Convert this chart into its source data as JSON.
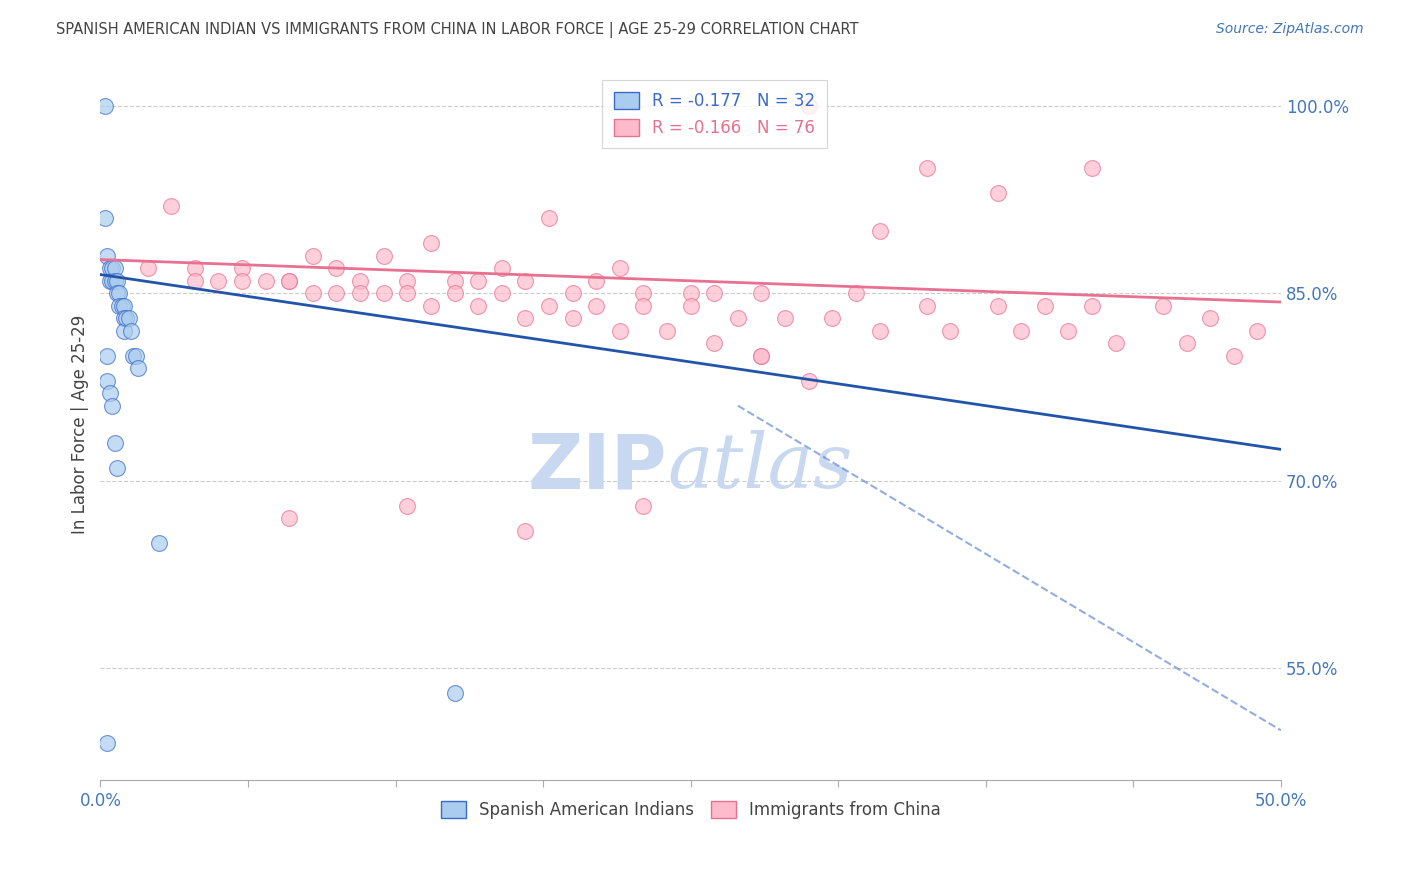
{
  "title": "SPANISH AMERICAN INDIAN VS IMMIGRANTS FROM CHINA IN LABOR FORCE | AGE 25-29 CORRELATION CHART",
  "source": "Source: ZipAtlas.com",
  "ylabel": "In Labor Force | Age 25-29",
  "xlim": [
    0.0,
    0.5
  ],
  "ylim": [
    0.46,
    1.03
  ],
  "xtick_positions": [
    0.0,
    0.0625,
    0.125,
    0.1875,
    0.25,
    0.3125,
    0.375,
    0.4375,
    0.5
  ],
  "xtick_labels_show": {
    "0.0": "0.0%",
    "0.5": "50.0%"
  },
  "ytick_positions_right": [
    1.0,
    0.85,
    0.7,
    0.55
  ],
  "ytick_labels_right": [
    "100.0%",
    "85.0%",
    "70.0%",
    "55.0%"
  ],
  "legend_r_entries": [
    {
      "r_text": "R = -0.177",
      "n_text": "N = 32",
      "r_color": "#3a6bc9",
      "n_color": "#3a6bc9"
    },
    {
      "r_text": "R = -0.166",
      "n_text": "N = 76",
      "r_color": "#e87090",
      "n_color": "#e87090"
    }
  ],
  "legend2_entries": [
    {
      "label": "Spanish American Indians",
      "face_color": "#aaccee",
      "edge_color": "#3a6bc9"
    },
    {
      "label": "Immigrants from China",
      "face_color": "#ffbbcc",
      "edge_color": "#e87090"
    }
  ],
  "blue_scatter_x": [
    0.002,
    0.002,
    0.003,
    0.004,
    0.004,
    0.005,
    0.005,
    0.006,
    0.006,
    0.007,
    0.007,
    0.008,
    0.008,
    0.009,
    0.01,
    0.01,
    0.01,
    0.011,
    0.012,
    0.013,
    0.014,
    0.015,
    0.016,
    0.003,
    0.003,
    0.004,
    0.005,
    0.006,
    0.007,
    0.025,
    0.15,
    0.003
  ],
  "blue_scatter_y": [
    1.0,
    0.91,
    0.88,
    0.87,
    0.86,
    0.87,
    0.86,
    0.87,
    0.86,
    0.86,
    0.85,
    0.85,
    0.84,
    0.84,
    0.84,
    0.83,
    0.82,
    0.83,
    0.83,
    0.82,
    0.8,
    0.8,
    0.79,
    0.8,
    0.78,
    0.77,
    0.76,
    0.73,
    0.71,
    0.65,
    0.53,
    0.49
  ],
  "pink_scatter_x": [
    0.3,
    0.03,
    0.09,
    0.14,
    0.19,
    0.12,
    0.17,
    0.22,
    0.04,
    0.06,
    0.08,
    0.1,
    0.11,
    0.13,
    0.15,
    0.16,
    0.18,
    0.2,
    0.21,
    0.23,
    0.25,
    0.26,
    0.28,
    0.32,
    0.35,
    0.38,
    0.4,
    0.42,
    0.45,
    0.47,
    0.49,
    0.05,
    0.07,
    0.09,
    0.11,
    0.13,
    0.15,
    0.17,
    0.19,
    0.21,
    0.23,
    0.25,
    0.27,
    0.29,
    0.31,
    0.33,
    0.36,
    0.39,
    0.41,
    0.43,
    0.46,
    0.48,
    0.02,
    0.04,
    0.06,
    0.08,
    0.1,
    0.12,
    0.14,
    0.16,
    0.18,
    0.2,
    0.22,
    0.24,
    0.26,
    0.28,
    0.3,
    0.35,
    0.42,
    0.38,
    0.33,
    0.28,
    0.23,
    0.18,
    0.13,
    0.08
  ],
  "pink_scatter_y": [
    1.0,
    0.92,
    0.88,
    0.89,
    0.91,
    0.88,
    0.87,
    0.87,
    0.87,
    0.87,
    0.86,
    0.87,
    0.86,
    0.86,
    0.86,
    0.86,
    0.86,
    0.85,
    0.86,
    0.85,
    0.85,
    0.85,
    0.85,
    0.85,
    0.84,
    0.84,
    0.84,
    0.84,
    0.84,
    0.83,
    0.82,
    0.86,
    0.86,
    0.85,
    0.85,
    0.85,
    0.85,
    0.85,
    0.84,
    0.84,
    0.84,
    0.84,
    0.83,
    0.83,
    0.83,
    0.82,
    0.82,
    0.82,
    0.82,
    0.81,
    0.81,
    0.8,
    0.87,
    0.86,
    0.86,
    0.86,
    0.85,
    0.85,
    0.84,
    0.84,
    0.83,
    0.83,
    0.82,
    0.82,
    0.81,
    0.8,
    0.78,
    0.95,
    0.95,
    0.93,
    0.9,
    0.8,
    0.68,
    0.66,
    0.68,
    0.67
  ],
  "blue_solid_line": {
    "x0": 0.0,
    "y0": 0.865,
    "x1": 0.5,
    "y1": 0.725
  },
  "blue_dashed_line": {
    "x0": 0.27,
    "y0": 0.76,
    "x1": 0.5,
    "y1": 0.5
  },
  "pink_solid_line": {
    "x0": 0.0,
    "y0": 0.877,
    "x1": 0.5,
    "y1": 0.843
  },
  "background_color": "#ffffff",
  "grid_color": "#cccccc",
  "title_color": "#444444",
  "axis_color": "#4477bb",
  "scatter_blue_color": "#aaccee",
  "scatter_blue_edge": "#3a6bc9",
  "scatter_pink_color": "#ffbbcc",
  "scatter_pink_edge": "#e87090",
  "line_blue_color": "#2255aa",
  "line_pink_color": "#e87090",
  "watermark_zip_color": "#c8d8f0",
  "watermark_atlas_color": "#c8d8f0",
  "watermark_fontsize": 55
}
